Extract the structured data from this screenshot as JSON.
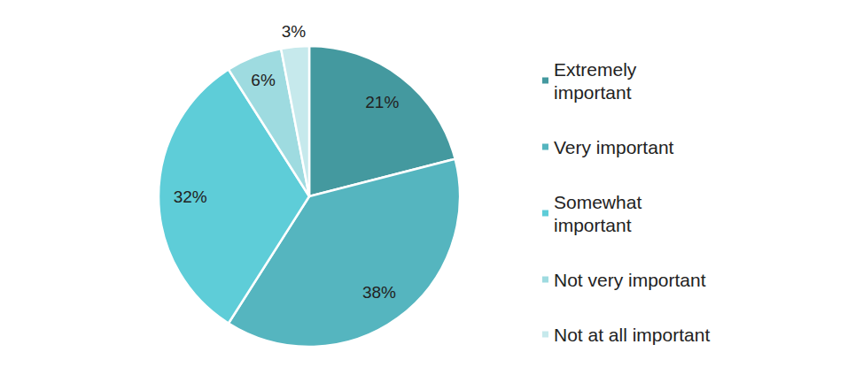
{
  "chart_data": {
    "type": "pie",
    "categories": [
      "Extremely important",
      "Very important",
      "Somewhat important",
      "Not very important",
      "Not at all important"
    ],
    "values": [
      21,
      38,
      32,
      6,
      3
    ],
    "value_labels": [
      "21%",
      "38%",
      "32%",
      "6%",
      "3%"
    ],
    "colors": [
      "#44999f",
      "#55b5bf",
      "#5ecdd8",
      "#9edbe0",
      "#c6e9ec"
    ],
    "data_labels": true,
    "legend": "right"
  }
}
